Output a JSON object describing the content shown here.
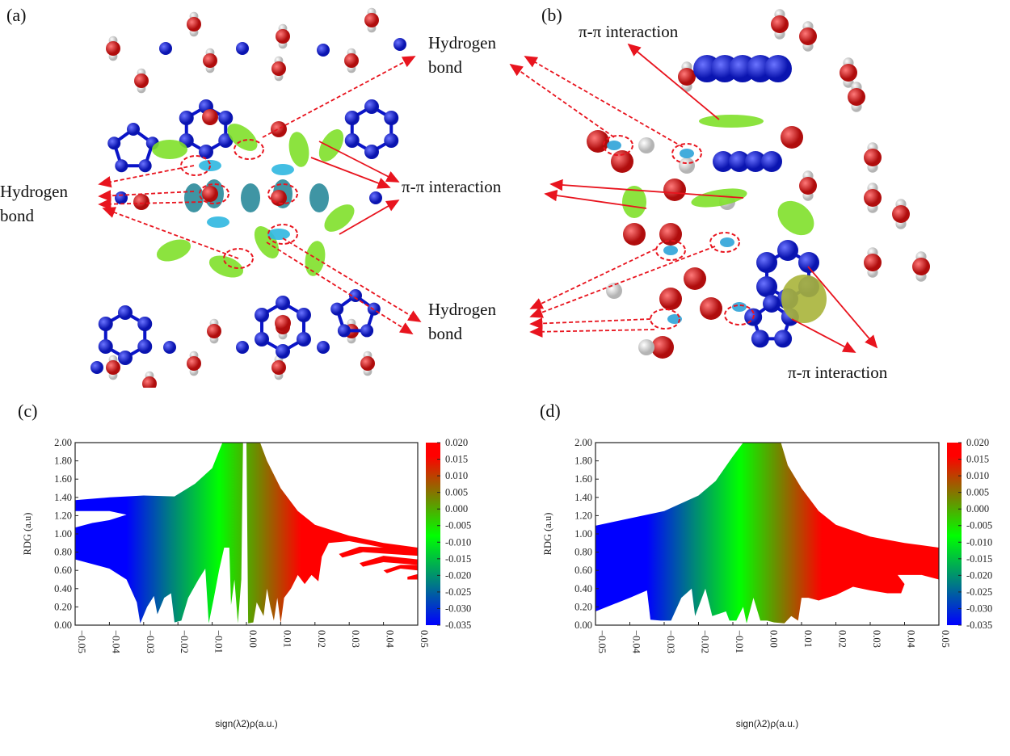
{
  "panels": {
    "a": {
      "label": "(a)"
    },
    "b": {
      "label": "(b)"
    },
    "c": {
      "label": "(c)"
    },
    "d": {
      "label": "(d)"
    }
  },
  "annotations": {
    "hbond_top_right": "Hydrogen bond",
    "hbond_left": "Hydrogen bond",
    "hbond_bottom_right": "Hydrogen bond",
    "pi_center": "π-π interaction",
    "pi_b_top": "π-π interaction",
    "pi_b_bottom": "π-π interaction"
  },
  "colors": {
    "arrow": "#e8141e",
    "nitrogen": "#0a14c8",
    "oxygen": "#d81818",
    "hydrogen": "#e6e6e6",
    "surface": "#7fe02a"
  },
  "colorbar": {
    "ticks": [
      "0.020",
      "0.015",
      "0.010",
      "0.005",
      "0.000",
      "-0.005",
      "-0.010",
      "-0.015",
      "-0.020",
      "-0.025",
      "-0.030",
      "-0.035"
    ],
    "range": [
      -0.035,
      0.02
    ],
    "stops": [
      {
        "v": -0.035,
        "c": "#0000ff"
      },
      {
        "v": -0.022,
        "c": "#00807f"
      },
      {
        "v": -0.008,
        "c": "#00ff00"
      },
      {
        "v": 0.003,
        "c": "#6f8a00"
      },
      {
        "v": 0.016,
        "c": "#ff0000"
      },
      {
        "v": 0.02,
        "c": "#ff0000"
      }
    ]
  },
  "chart_data": [
    {
      "id": "c",
      "type": "scatter",
      "xlabel": "sign(λ2)ρ(a.u.)",
      "ylabel": "RDG (a.u)",
      "xlim": [
        -0.05,
        0.05
      ],
      "ylim": [
        0,
        2.0
      ],
      "xticks": [
        "-0.05",
        "-0.04",
        "-0.03",
        "-0.02",
        "-0.01",
        "0.00",
        "0.01",
        "0.02",
        "0.03",
        "0.04",
        "0.05"
      ],
      "yticks": [
        "0.00",
        "0.20",
        "0.40",
        "0.60",
        "0.80",
        "1.00",
        "1.20",
        "1.40",
        "1.60",
        "1.80",
        "2.00"
      ],
      "color_by": "x",
      "envelope_upper": [
        [
          -0.05,
          1.37
        ],
        [
          -0.04,
          1.4
        ],
        [
          -0.03,
          1.42
        ],
        [
          -0.021,
          1.41
        ],
        [
          -0.015,
          1.55
        ],
        [
          -0.01,
          1.72
        ],
        [
          -0.007,
          2.0
        ],
        [
          0.004,
          2.0
        ],
        [
          0.006,
          1.8
        ],
        [
          0.01,
          1.5
        ],
        [
          0.015,
          1.25
        ],
        [
          0.02,
          1.1
        ],
        [
          0.03,
          0.98
        ],
        [
          0.04,
          0.9
        ],
        [
          0.05,
          0.85
        ]
      ],
      "envelope_lower": [
        [
          -0.05,
          0.72
        ],
        [
          -0.04,
          0.62
        ],
        [
          -0.035,
          0.5
        ],
        [
          -0.032,
          0.25
        ],
        [
          -0.031,
          0.02
        ],
        [
          -0.029,
          0.2
        ],
        [
          -0.027,
          0.32
        ],
        [
          -0.026,
          0.12
        ],
        [
          -0.024,
          0.3
        ],
        [
          -0.022,
          0.35
        ],
        [
          -0.021,
          0.03
        ],
        [
          -0.019,
          0.05
        ],
        [
          -0.017,
          0.3
        ],
        [
          -0.014,
          0.5
        ],
        [
          -0.012,
          0.62
        ],
        [
          -0.011,
          0.02
        ],
        [
          -0.0095,
          0.3
        ],
        [
          -0.008,
          0.6
        ],
        [
          -0.0065,
          0.85
        ],
        [
          -0.005,
          0.85
        ],
        [
          -0.0045,
          0.22
        ],
        [
          -0.0035,
          0.5
        ],
        [
          -0.0025,
          0.02
        ],
        [
          -0.0015,
          0.5
        ],
        [
          -0.001,
          2.0
        ],
        [
          0.0,
          2.0
        ],
        [
          0.0005,
          0.02
        ],
        [
          0.002,
          0.03
        ],
        [
          0.003,
          0.25
        ],
        [
          0.005,
          0.1
        ],
        [
          0.006,
          0.4
        ],
        [
          0.007,
          0.2
        ],
        [
          0.008,
          0.05
        ],
        [
          0.009,
          0.3
        ],
        [
          0.01,
          0.02
        ],
        [
          0.011,
          0.3
        ],
        [
          0.013,
          0.4
        ],
        [
          0.015,
          0.55
        ],
        [
          0.017,
          0.45
        ],
        [
          0.019,
          0.55
        ],
        [
          0.021,
          0.48
        ],
        [
          0.022,
          0.75
        ],
        [
          0.024,
          0.9
        ],
        [
          0.03,
          0.92
        ],
        [
          0.04,
          0.85
        ],
        [
          0.05,
          0.8
        ]
      ],
      "gaps": [
        [
          [
            -0.05,
            1.07
          ],
          [
            -0.045,
            1.12
          ],
          [
            -0.04,
            1.15
          ],
          [
            -0.035,
            1.21
          ],
          [
            -0.04,
            1.25
          ],
          [
            -0.05,
            1.25
          ]
        ]
      ],
      "islands": [
        [
          [
            0.027,
            0.78
          ],
          [
            0.033,
            0.86
          ],
          [
            0.05,
            0.84
          ],
          [
            0.05,
            0.76
          ],
          [
            0.034,
            0.8
          ],
          [
            0.028,
            0.74
          ]
        ],
        [
          [
            0.033,
            0.68
          ],
          [
            0.04,
            0.76
          ],
          [
            0.05,
            0.72
          ],
          [
            0.05,
            0.66
          ],
          [
            0.04,
            0.69
          ],
          [
            0.034,
            0.64
          ]
        ],
        [
          [
            0.04,
            0.6
          ],
          [
            0.045,
            0.66
          ],
          [
            0.05,
            0.66
          ],
          [
            0.05,
            0.6
          ],
          [
            0.045,
            0.62
          ],
          [
            0.041,
            0.57
          ]
        ],
        [
          [
            0.047,
            0.53
          ],
          [
            0.05,
            0.56
          ],
          [
            0.05,
            0.5
          ],
          [
            0.047,
            0.5
          ]
        ]
      ]
    },
    {
      "id": "d",
      "type": "scatter",
      "xlabel": "sign(λ2)ρ(a.u.)",
      "ylabel": "RDG (a.u)",
      "xlim": [
        -0.05,
        0.05
      ],
      "ylim": [
        0,
        2.0
      ],
      "xticks": [
        "-0.05",
        "-0.04",
        "-0.03",
        "-0.02",
        "-0.01",
        "0.00",
        "0.01",
        "0.02",
        "0.03",
        "0.04",
        "0.05"
      ],
      "yticks": [
        "0.00",
        "0.20",
        "0.40",
        "0.60",
        "0.80",
        "1.00",
        "1.20",
        "1.40",
        "1.60",
        "1.80",
        "2.00"
      ],
      "color_by": "x",
      "envelope_upper": [
        [
          -0.05,
          1.09
        ],
        [
          -0.04,
          1.17
        ],
        [
          -0.03,
          1.25
        ],
        [
          -0.02,
          1.42
        ],
        [
          -0.015,
          1.58
        ],
        [
          -0.01,
          1.85
        ],
        [
          -0.007,
          2.0
        ],
        [
          0.004,
          2.0
        ],
        [
          0.006,
          1.75
        ],
        [
          0.01,
          1.5
        ],
        [
          0.015,
          1.25
        ],
        [
          0.02,
          1.1
        ],
        [
          0.03,
          0.97
        ],
        [
          0.04,
          0.9
        ],
        [
          0.05,
          0.85
        ]
      ],
      "envelope_lower": [
        [
          -0.05,
          0.15
        ],
        [
          -0.04,
          0.3
        ],
        [
          -0.035,
          0.38
        ],
        [
          -0.034,
          0.06
        ],
        [
          -0.031,
          0.05
        ],
        [
          -0.028,
          0.05
        ],
        [
          -0.025,
          0.3
        ],
        [
          -0.022,
          0.4
        ],
        [
          -0.021,
          0.1
        ],
        [
          -0.018,
          0.4
        ],
        [
          -0.016,
          0.1
        ],
        [
          -0.012,
          0.15
        ],
        [
          -0.011,
          0.05
        ],
        [
          -0.009,
          0.05
        ],
        [
          -0.007,
          0.2
        ],
        [
          -0.006,
          0.02
        ],
        [
          -0.004,
          0.3
        ],
        [
          -0.002,
          0.05
        ],
        [
          0.0,
          0.05
        ],
        [
          0.002,
          0.03
        ],
        [
          0.005,
          0.02
        ],
        [
          0.007,
          0.1
        ],
        [
          0.009,
          0.05
        ],
        [
          0.01,
          0.3
        ],
        [
          0.012,
          0.3
        ],
        [
          0.015,
          0.27
        ],
        [
          0.02,
          0.33
        ],
        [
          0.025,
          0.42
        ],
        [
          0.03,
          0.38
        ],
        [
          0.035,
          0.35
        ],
        [
          0.039,
          0.35
        ],
        [
          0.04,
          0.45
        ],
        [
          0.038,
          0.55
        ],
        [
          0.045,
          0.55
        ],
        [
          0.05,
          0.5
        ]
      ],
      "gaps": [],
      "islands": []
    }
  ]
}
